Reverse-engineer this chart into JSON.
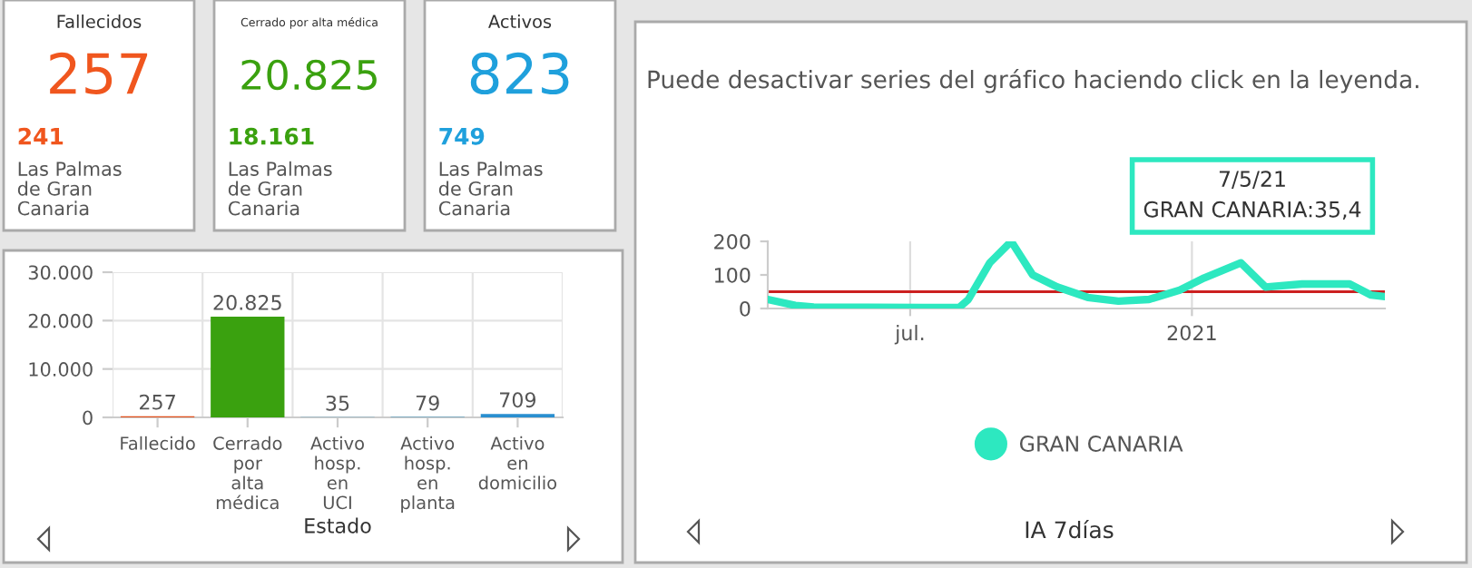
{
  "chart_data": [
    {
      "type": "other",
      "title": "Fallecidos",
      "annotations": [
        "257",
        "241",
        "Las Palmas de Gran Canaria"
      ],
      "colors": [
        "#f0561e",
        "#f0561e",
        "#555555"
      ]
    },
    {
      "type": "other",
      "title": "Cerrado por alta médica",
      "annotations": [
        "20.825",
        "18.161",
        "Las Palmas de Gran Canaria"
      ],
      "colors": [
        "#3aa10f",
        "#3aa10f",
        "#555555"
      ]
    },
    {
      "type": "other",
      "title": "Activos",
      "annotations": [
        "823",
        "749",
        "Las Palmas de Gran Canaria"
      ],
      "colors": [
        "#1fa0dc",
        "#1fa0dc",
        "#555555"
      ]
    },
    {
      "type": "bar",
      "xlabel": "Estado",
      "categories": [
        "Fallecido",
        "Cerrado por alta médica",
        "Activo hosp. en UCI",
        "Activo hosp. en planta",
        "Activo en domicilio"
      ],
      "values": [
        257,
        20825,
        35,
        79,
        709
      ],
      "colors": [
        "#e0501c",
        "#3aa10f",
        "#3a8fb8",
        "#3a8fb8",
        "#2a8fd0"
      ],
      "value_labels": [
        "257",
        "20.825",
        "35",
        "79",
        "709"
      ],
      "ylim": [
        0,
        30000
      ],
      "yticks": [
        0,
        {
          "value": 10000,
          "label": "10.000"
        },
        {
          "value": 20000,
          "label": "20.000"
        },
        {
          "value": 30000,
          "label": "30.000"
        }
      ],
      "grid": true
    },
    {
      "type": "line",
      "title": "Puede desactivar series del gráfico haciendo click en la leyenda.",
      "xlabel": "IA 7días",
      "x": [
        "2020-03-30",
        "2020-04-17",
        "2020-04-29",
        "2020-08-02",
        "2020-08-08",
        "2020-08-22",
        "2020-09-05",
        "2020-09-19",
        "2020-10-05",
        "2020-10-25",
        "2020-11-14",
        "2020-12-04",
        "2020-12-24",
        "2021-01-09",
        "2021-02-02",
        "2021-02-18",
        "2021-03-14",
        "2021-04-14",
        "2021-04-28",
        "2021-05-07"
      ],
      "series": [
        {
          "name": "GRAN CANARIA",
          "color": "#2de8c0",
          "values": [
            27,
            9,
            4,
            3,
            27,
            136,
            200,
            100,
            64,
            33,
            22,
            27,
            55,
            91,
            136,
            64,
            73,
            73,
            40,
            35.4
          ]
        }
      ],
      "xlim": [
        "2020-03-30",
        "2021-05-07"
      ],
      "xticks": [
        {
          "value": "2020-07-01",
          "label": "jul."
        },
        {
          "value": "2021-01-01",
          "label": "2021"
        }
      ],
      "ylim": [
        0,
        200
      ],
      "yticks": [
        0,
        100,
        200
      ],
      "grid": "x",
      "legend": "bottom",
      "ref_lines": [
        {
          "axis": "y",
          "value": 50,
          "color": "#cc2020"
        }
      ],
      "annotations": [
        "7/5/21",
        "GRAN CANARIA:35,4"
      ]
    }
  ]
}
